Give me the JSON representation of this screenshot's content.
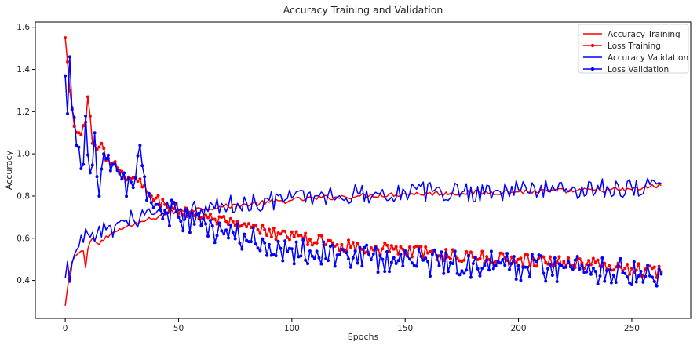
{
  "chart_data": {
    "type": "line",
    "title": "Accuracy Training and Validation",
    "xlabel": "Epochs",
    "ylabel": "Accuracy",
    "xlim": [
      -13.2,
      276.0
    ],
    "ylim": [
      0.22,
      1.625
    ],
    "x_ticks": [
      0,
      50,
      100,
      150,
      200,
      250
    ],
    "x_tick_labels": [
      "0",
      "50",
      "100",
      "150",
      "200",
      "250"
    ],
    "y_ticks": [
      0.4,
      0.6,
      0.8,
      1.0,
      1.2,
      1.4,
      1.6
    ],
    "y_tick_labels": [
      "0.4",
      "0.6",
      "0.8",
      "1.0",
      "1.2",
      "1.4",
      "1.6"
    ],
    "grid": false,
    "legend_position": "top-right",
    "series": [
      {
        "name": "Accuracy Training",
        "color": "#ff0000",
        "marker": "none",
        "keypoints": [
          [
            0,
            0.28
          ],
          [
            2,
            0.44
          ],
          [
            4,
            0.51
          ],
          [
            6,
            0.53
          ],
          [
            8,
            0.54
          ],
          [
            9,
            0.46
          ],
          [
            10,
            0.55
          ],
          [
            12,
            0.6
          ],
          [
            15,
            0.57
          ],
          [
            18,
            0.61
          ],
          [
            22,
            0.63
          ],
          [
            26,
            0.65
          ],
          [
            30,
            0.66
          ],
          [
            34,
            0.68
          ],
          [
            38,
            0.69
          ],
          [
            42,
            0.71
          ],
          [
            46,
            0.72
          ],
          [
            50,
            0.73
          ],
          [
            60,
            0.74
          ],
          [
            70,
            0.75
          ],
          [
            80,
            0.76
          ],
          [
            90,
            0.77
          ],
          [
            100,
            0.78
          ],
          [
            110,
            0.79
          ],
          [
            120,
            0.795
          ],
          [
            130,
            0.8
          ],
          [
            150,
            0.81
          ],
          [
            175,
            0.815
          ],
          [
            200,
            0.82
          ],
          [
            225,
            0.825
          ],
          [
            250,
            0.83
          ],
          [
            263,
            0.85
          ]
        ],
        "noise": 0.012
      },
      {
        "name": "Loss Training",
        "color": "#ff0000",
        "marker": "dot",
        "keypoints": [
          [
            0,
            1.55
          ],
          [
            2,
            1.3
          ],
          [
            3,
            1.22
          ],
          [
            4,
            1.13
          ],
          [
            6,
            1.1
          ],
          [
            7,
            1.09
          ],
          [
            9,
            1.15
          ],
          [
            10,
            1.27
          ],
          [
            12,
            1.05
          ],
          [
            14,
            1.02
          ],
          [
            16,
            1.05
          ],
          [
            18,
            0.97
          ],
          [
            20,
            0.95
          ],
          [
            24,
            0.92
          ],
          [
            28,
            0.89
          ],
          [
            32,
            0.87
          ],
          [
            36,
            0.82
          ],
          [
            40,
            0.79
          ],
          [
            44,
            0.76
          ],
          [
            48,
            0.74
          ],
          [
            55,
            0.72
          ],
          [
            65,
            0.69
          ],
          [
            75,
            0.66
          ],
          [
            85,
            0.64
          ],
          [
            95,
            0.62
          ],
          [
            105,
            0.6
          ],
          [
            120,
            0.57
          ],
          [
            140,
            0.55
          ],
          [
            160,
            0.53
          ],
          [
            180,
            0.51
          ],
          [
            200,
            0.5
          ],
          [
            220,
            0.49
          ],
          [
            240,
            0.47
          ],
          [
            263,
            0.44
          ]
        ],
        "noise": 0.03
      },
      {
        "name": "Accuracy Validation",
        "color": "#0000ff",
        "marker": "none",
        "keypoints": [
          [
            0,
            0.41
          ],
          [
            1,
            0.49
          ],
          [
            2,
            0.39
          ],
          [
            4,
            0.52
          ],
          [
            6,
            0.56
          ],
          [
            8,
            0.58
          ],
          [
            10,
            0.62
          ],
          [
            14,
            0.62
          ],
          [
            18,
            0.64
          ],
          [
            22,
            0.66
          ],
          [
            26,
            0.68
          ],
          [
            30,
            0.69
          ],
          [
            35,
            0.71
          ],
          [
            40,
            0.72
          ],
          [
            50,
            0.73
          ],
          [
            60,
            0.74
          ],
          [
            70,
            0.75
          ],
          [
            80,
            0.77
          ],
          [
            90,
            0.78
          ],
          [
            100,
            0.79
          ],
          [
            110,
            0.8
          ],
          [
            130,
            0.81
          ],
          [
            150,
            0.82
          ],
          [
            175,
            0.82
          ],
          [
            200,
            0.83
          ],
          [
            225,
            0.835
          ],
          [
            250,
            0.84
          ],
          [
            263,
            0.86
          ]
        ],
        "noise": 0.05
      },
      {
        "name": "Loss Validation",
        "color": "#0000ff",
        "marker": "dot",
        "keypoints": [
          [
            0,
            1.37
          ],
          [
            1,
            1.19
          ],
          [
            2,
            1.46
          ],
          [
            3,
            1.21
          ],
          [
            5,
            1.04
          ],
          [
            7,
            0.93
          ],
          [
            8,
            0.95
          ],
          [
            9,
            1.18
          ],
          [
            11,
            0.91
          ],
          [
            13,
            1.1
          ],
          [
            15,
            0.8
          ],
          [
            17,
            1.0
          ],
          [
            20,
            0.92
          ],
          [
            25,
            0.88
          ],
          [
            30,
            0.84
          ],
          [
            33,
            1.04
          ],
          [
            36,
            0.78
          ],
          [
            40,
            0.76
          ],
          [
            45,
            0.72
          ],
          [
            50,
            0.7
          ],
          [
            60,
            0.66
          ],
          [
            70,
            0.62
          ],
          [
            80,
            0.59
          ],
          [
            90,
            0.57
          ],
          [
            100,
            0.55
          ],
          [
            120,
            0.52
          ],
          [
            140,
            0.5
          ],
          [
            160,
            0.49
          ],
          [
            180,
            0.48
          ],
          [
            200,
            0.47
          ],
          [
            220,
            0.46
          ],
          [
            240,
            0.45
          ],
          [
            263,
            0.43
          ]
        ],
        "noise": 0.07
      }
    ]
  }
}
